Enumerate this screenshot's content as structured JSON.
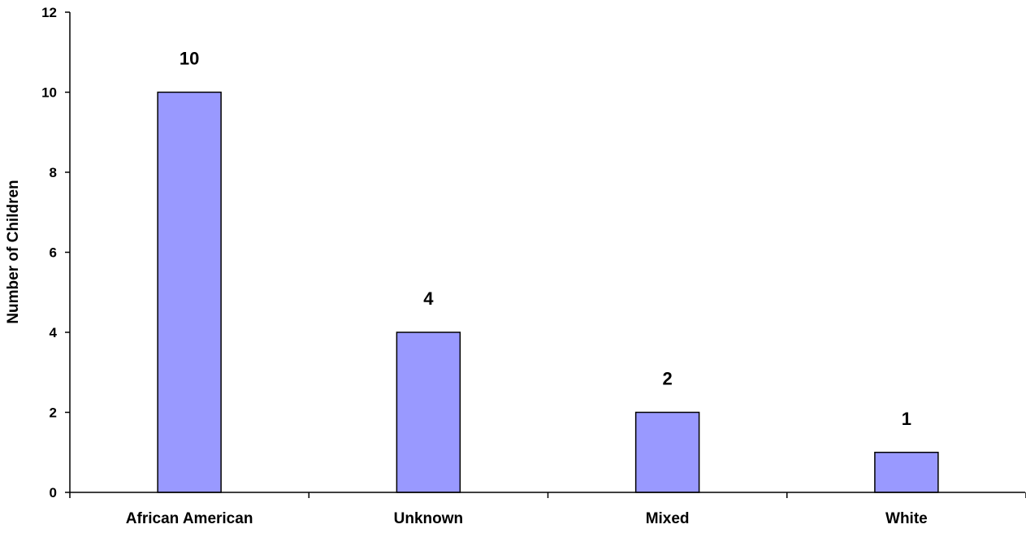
{
  "chart_data": {
    "type": "bar",
    "title": "",
    "xlabel": "",
    "ylabel": "Number of Children",
    "categories": [
      "African American",
      "Unknown",
      "Mixed",
      "White"
    ],
    "values": [
      10,
      4,
      2,
      1
    ],
    "data_labels": [
      "10",
      "4",
      "2",
      "1"
    ],
    "ylim": [
      0,
      12
    ],
    "yticks": [
      0,
      2,
      4,
      6,
      8,
      10,
      12
    ],
    "grid": false,
    "legend": "none",
    "bar_color": "#9999ff",
    "bar_edge_color": "#000000"
  }
}
